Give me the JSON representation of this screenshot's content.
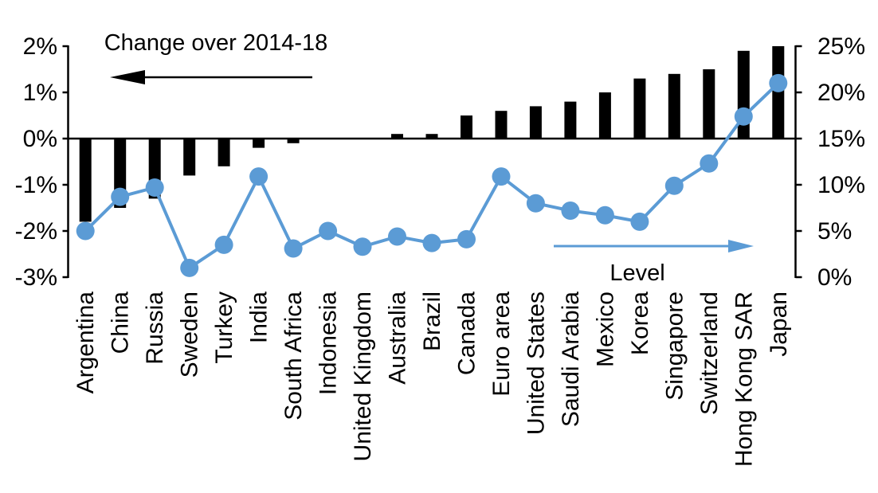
{
  "chart_data": {
    "type": "bar+line combo",
    "categories": [
      "Argentina",
      "China",
      "Russia",
      "Sweden",
      "Turkey",
      "India",
      "South Africa",
      "Indonesia",
      "United Kingdom",
      "Australia",
      "Brazil",
      "Canada",
      "Euro area",
      "United States",
      "Saudi Arabia",
      "Mexico",
      "Korea",
      "Singapore",
      "Switzerland",
      "Hong Kong SAR",
      "Japan"
    ],
    "series": [
      {
        "name": "Change over 2014-18",
        "type": "bar",
        "axis": "left",
        "color": "#000000",
        "values": [
          -1.8,
          -1.5,
          -1.3,
          -0.8,
          -0.6,
          -0.2,
          -0.1,
          0,
          0,
          0.1,
          0.1,
          0.5,
          0.6,
          0.7,
          0.8,
          1.0,
          1.3,
          1.4,
          1.5,
          1.9,
          2.0
        ]
      },
      {
        "name": "Level",
        "type": "line",
        "axis": "right",
        "color": "#5B9BD5",
        "values": [
          5.0,
          8.7,
          9.7,
          1.0,
          3.5,
          10.9,
          3.1,
          5.0,
          3.3,
          4.4,
          3.7,
          4.1,
          10.9,
          8.0,
          7.2,
          6.7,
          6.0,
          9.9,
          12.3,
          17.4,
          21.0
        ]
      }
    ],
    "left_axis": {
      "min": -3,
      "max": 2,
      "tick_values": [
        2,
        1,
        0,
        -1,
        -2,
        -3
      ],
      "tick_labels": [
        "2%",
        "1%",
        "0%",
        "-1%",
        "-2%",
        "-3%"
      ]
    },
    "right_axis": {
      "min": 0,
      "max": 25,
      "tick_values": [
        25,
        20,
        15,
        10,
        5,
        0
      ],
      "tick_labels": [
        "25%",
        "20%",
        "15%",
        "10%",
        "5%",
        "0%"
      ]
    },
    "annotations": {
      "bar_label": "Change over 2014-18",
      "bar_arrow_direction": "left",
      "bar_arrow_color": "#000000",
      "line_label": "Level",
      "line_arrow_direction": "right",
      "line_arrow_color": "#5B9BD5"
    },
    "layout_hints": {
      "grid": false,
      "legend": "none (arrow annotations inside plot)",
      "category_labels_rotated_90deg": true,
      "zero_line_full_width": true
    }
  }
}
